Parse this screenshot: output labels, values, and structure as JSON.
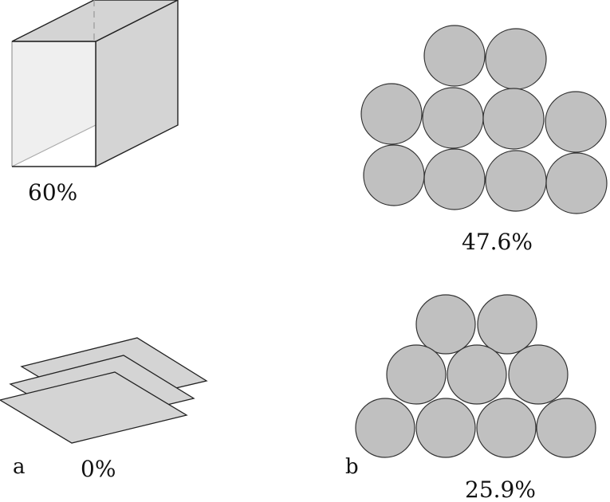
{
  "panels": {
    "a": {
      "label": "a",
      "box": {
        "percent": "60%"
      },
      "sheets": {
        "percent": "0%"
      }
    },
    "b": {
      "label": "b",
      "square_packing": {
        "percent": "47.6%"
      },
      "hex_packing": {
        "percent": "25.9%"
      }
    }
  },
  "colors": {
    "fill_gray": "#d4d4d4",
    "fill_light": "#efefef",
    "disc_gray": "#c0c0c0",
    "edge": "#222222",
    "hidden_edge": "#aaaaaa"
  }
}
